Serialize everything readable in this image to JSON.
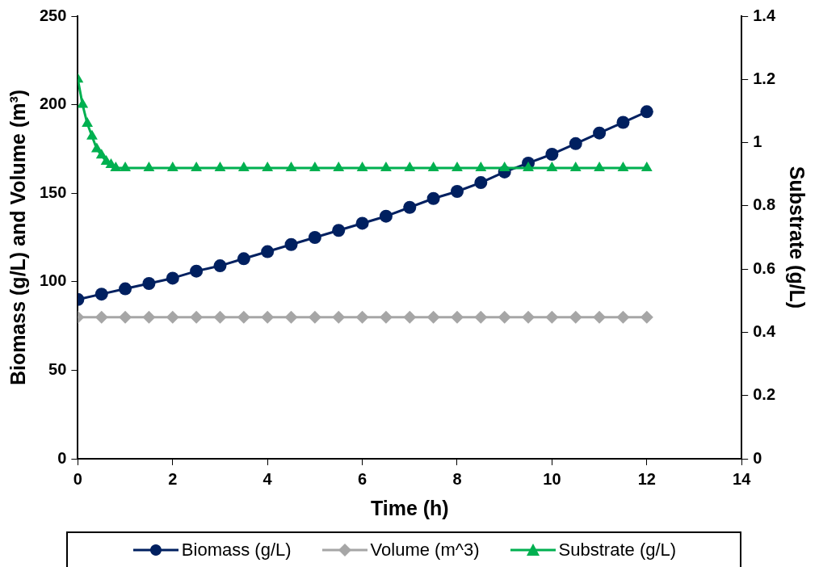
{
  "chart_data": {
    "type": "line",
    "xlabel": "Time (h)",
    "ylabel": "Biomass (g/L) and Volume (m³)",
    "y2label": "Substrate (g/L)",
    "xlim": [
      0,
      14
    ],
    "xticks": [
      0,
      2,
      4,
      6,
      8,
      10,
      12,
      14
    ],
    "ylim": [
      0,
      250
    ],
    "yticks": [
      0,
      50,
      100,
      150,
      200,
      250
    ],
    "y2lim": [
      0,
      1.4
    ],
    "y2ticks": [
      0,
      0.2,
      0.4,
      0.6,
      0.8,
      1,
      1.2,
      1.4
    ],
    "legend": "bottom",
    "series": [
      {
        "name": "Biomass (g/L)",
        "color": "#002060",
        "marker": "circle",
        "x": [
          0,
          0.5,
          1,
          1.5,
          2,
          2.5,
          3,
          3.5,
          4,
          4.5,
          5,
          5.5,
          6,
          6.5,
          7,
          7.5,
          8,
          8.5,
          9,
          9.5,
          10,
          10.5,
          11,
          11.5,
          12
        ],
        "values": [
          90,
          93,
          96,
          99,
          102,
          106,
          109,
          113,
          117,
          121,
          125,
          129,
          133,
          137,
          142,
          147,
          151,
          156,
          162,
          167,
          172,
          178,
          184,
          190,
          196
        ]
      },
      {
        "name": "Volume (m^3)",
        "color": "#a6a6a6",
        "marker": "diamond",
        "x": [
          0,
          0.5,
          1,
          1.5,
          2,
          2.5,
          3,
          3.5,
          4,
          4.5,
          5,
          5.5,
          6,
          6.5,
          7,
          7.5,
          8,
          8.5,
          9,
          9.5,
          10,
          10.5,
          11,
          11.5,
          12
        ],
        "values": [
          80,
          80,
          80,
          80,
          80,
          80,
          80,
          80,
          80,
          80,
          80,
          80,
          80,
          80,
          80,
          80,
          80,
          80,
          80,
          80,
          80,
          80,
          80,
          80,
          80
        ]
      },
      {
        "name": "Substrate (g/L)",
        "color": "#00b050",
        "marker": "triangle",
        "axis": "y2",
        "x": [
          0,
          0.1,
          0.2,
          0.3,
          0.4,
          0.5,
          0.6,
          0.7,
          0.8,
          1,
          1.5,
          2,
          2.5,
          3,
          3.5,
          4,
          4.5,
          5,
          5.5,
          6,
          6.5,
          7,
          7.5,
          8,
          8.5,
          9,
          9.5,
          10,
          10.5,
          11,
          11.5,
          12
        ],
        "values": [
          1.2,
          1.12,
          1.06,
          1.02,
          0.98,
          0.96,
          0.94,
          0.93,
          0.92,
          0.92,
          0.92,
          0.92,
          0.92,
          0.92,
          0.92,
          0.92,
          0.92,
          0.92,
          0.92,
          0.92,
          0.92,
          0.92,
          0.92,
          0.92,
          0.92,
          0.92,
          0.92,
          0.92,
          0.92,
          0.92,
          0.92,
          0.92
        ]
      }
    ]
  }
}
